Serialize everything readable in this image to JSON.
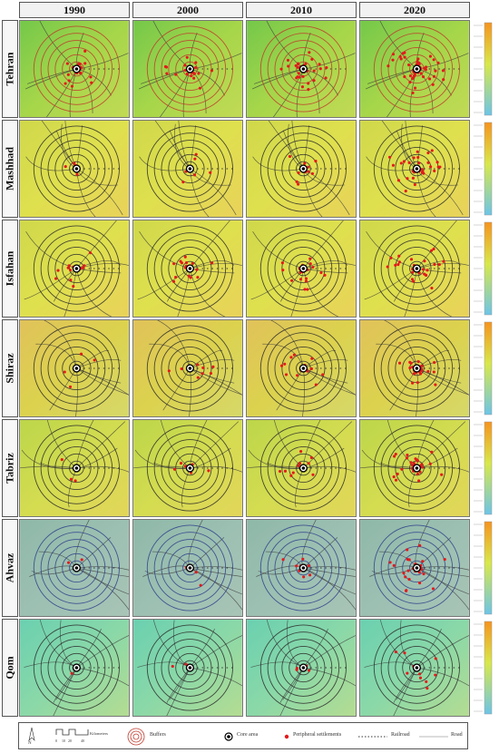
{
  "years": [
    "1990",
    "2000",
    "2010",
    "2020"
  ],
  "cities": [
    {
      "name": "Tehran",
      "palette": "green"
    },
    {
      "name": "Mashhad",
      "palette": "yellow"
    },
    {
      "name": "Isfahan",
      "palette": "yellow"
    },
    {
      "name": "Shiraz",
      "palette": "orange"
    },
    {
      "name": "Tabriz",
      "palette": "yellowgreen"
    },
    {
      "name": "Ahvaz",
      "palette": "teal"
    },
    {
      "name": "Qom",
      "palette": "cyan"
    }
  ],
  "settlements_per_year": {
    "Tehran": [
      18,
      18,
      28,
      45
    ],
    "Mashhad": [
      5,
      6,
      10,
      30
    ],
    "Isfahan": [
      12,
      15,
      18,
      25
    ],
    "Shiraz": [
      4,
      8,
      14,
      22
    ],
    "Tabriz": [
      3,
      6,
      10,
      30
    ],
    "Ahvaz": [
      2,
      3,
      8,
      25
    ],
    "Qom": [
      1,
      2,
      4,
      10
    ]
  },
  "legend": {
    "buffers": "Buffers",
    "core": "Core area",
    "peripheral": "Peripheral settlements",
    "railroad": "Railroad",
    "road": "Road",
    "scale_label": "Kilometers",
    "scale_ticks": [
      "0",
      "10",
      "20",
      "40"
    ],
    "north": "N"
  },
  "colors": {
    "settlement": "#e31a1c",
    "buffer_tehran": "#c0392b",
    "buffer_default": "#2b2b2b",
    "buffer_ahvaz": "#2f3f8a",
    "road": "#3a3a3a",
    "colorbar_top": "#f7941d",
    "colorbar_mid": "#d8e84a",
    "colorbar_bottom": "#6cc5e8"
  }
}
